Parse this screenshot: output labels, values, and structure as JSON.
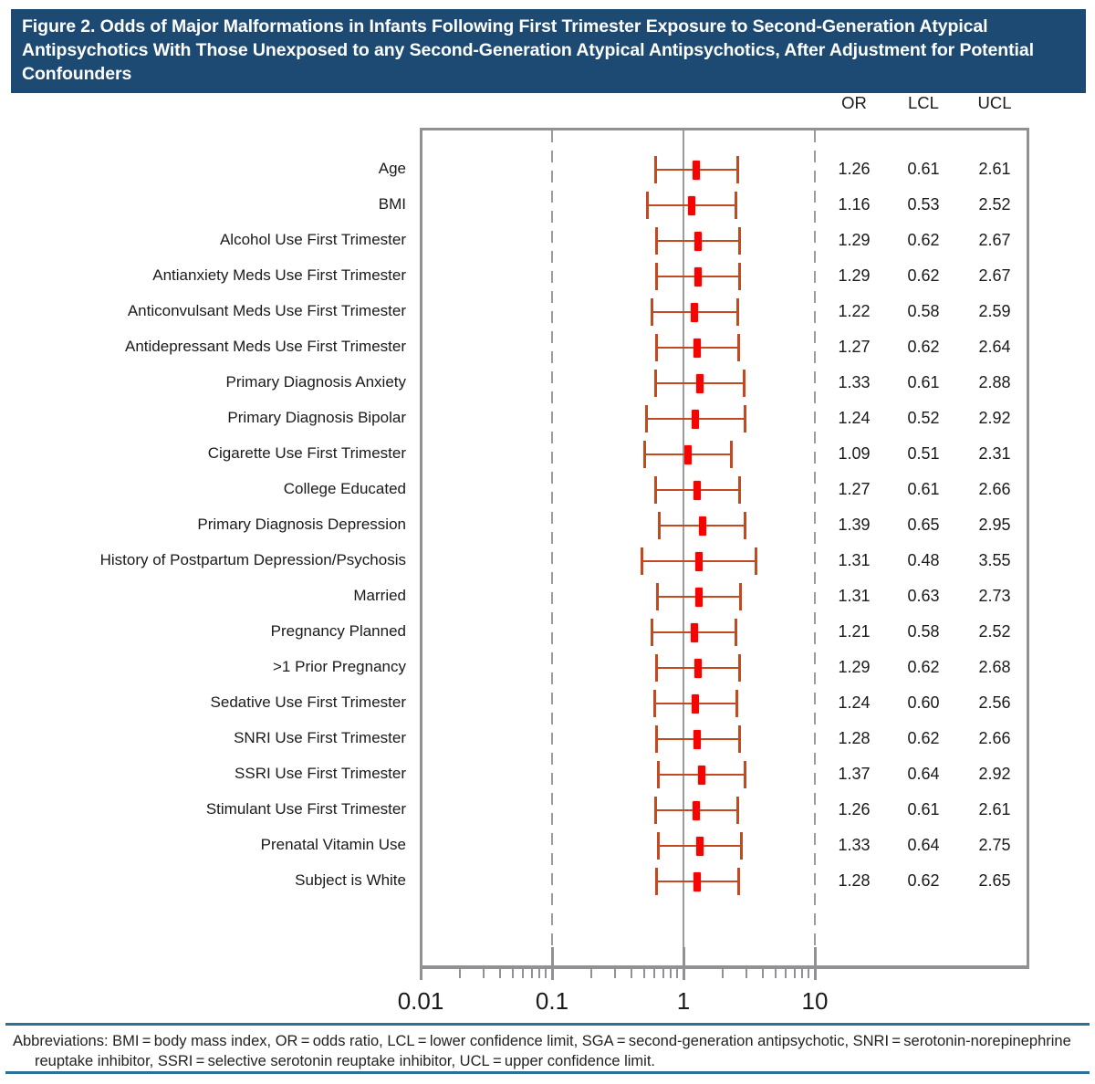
{
  "title": "Figure 2. Odds of Major Malformations in Infants Following First Trimester Exposure to Second-Generation Atypical Antipsychotics With Those Unexposed to any Second-Generation Atypical Antipsychotics, After Adjustment for Potential Confounders",
  "columns": {
    "or": "OR",
    "lcl": "LCL",
    "ucl": "UCL"
  },
  "chart_data": {
    "type": "forest",
    "x_scale": "log10",
    "x_range": [
      0.01,
      100
    ],
    "x_ticks": [
      0.01,
      0.1,
      1,
      10
    ],
    "x_tick_labels": [
      "0.01",
      "0.1",
      "1",
      "10"
    ],
    "minor_tick_multipliers": [
      2,
      3,
      4,
      5,
      6,
      7,
      8,
      9
    ],
    "minor_tick_decades": [
      -2,
      -1,
      0
    ],
    "reference_line": 1,
    "dashed_gridlines": [
      0.1,
      10
    ],
    "rows": [
      {
        "label": "Age",
        "or": 1.26,
        "lcl": 0.61,
        "ucl": 2.61
      },
      {
        "label": "BMI",
        "or": 1.16,
        "lcl": 0.53,
        "ucl": 2.52
      },
      {
        "label": "Alcohol Use First Trimester",
        "or": 1.29,
        "lcl": 0.62,
        "ucl": 2.67
      },
      {
        "label": "Antianxiety Meds Use First Trimester",
        "or": 1.29,
        "lcl": 0.62,
        "ucl": 2.67
      },
      {
        "label": "Anticonvulsant Meds Use First Trimester",
        "or": 1.22,
        "lcl": 0.58,
        "ucl": 2.59
      },
      {
        "label": "Antidepressant Meds Use First Trimester",
        "or": 1.27,
        "lcl": 0.62,
        "ucl": 2.64
      },
      {
        "label": "Primary Diagnosis Anxiety",
        "or": 1.33,
        "lcl": 0.61,
        "ucl": 2.88
      },
      {
        "label": "Primary Diagnosis Bipolar",
        "or": 1.24,
        "lcl": 0.52,
        "ucl": 2.92
      },
      {
        "label": "Cigarette Use First Trimester",
        "or": 1.09,
        "lcl": 0.51,
        "ucl": 2.31
      },
      {
        "label": "College Educated",
        "or": 1.27,
        "lcl": 0.61,
        "ucl": 2.66
      },
      {
        "label": "Primary Diagnosis Depression",
        "or": 1.39,
        "lcl": 0.65,
        "ucl": 2.95
      },
      {
        "label": "History of Postpartum Depression/Psychosis",
        "or": 1.31,
        "lcl": 0.48,
        "ucl": 3.55
      },
      {
        "label": "Married",
        "or": 1.31,
        "lcl": 0.63,
        "ucl": 2.73
      },
      {
        "label": "Pregnancy Planned",
        "or": 1.21,
        "lcl": 0.58,
        "ucl": 2.52
      },
      {
        "label": ">1 Prior Pregnancy",
        "or": 1.29,
        "lcl": 0.62,
        "ucl": 2.68
      },
      {
        "label": "Sedative Use First Trimester",
        "or": 1.24,
        "lcl": 0.6,
        "ucl": 2.56
      },
      {
        "label": "SNRI Use First Trimester",
        "or": 1.28,
        "lcl": 0.62,
        "ucl": 2.66
      },
      {
        "label": "SSRI Use First Trimester",
        "or": 1.37,
        "lcl": 0.64,
        "ucl": 2.92
      },
      {
        "label": "Stimulant Use First Trimester",
        "or": 1.26,
        "lcl": 0.61,
        "ucl": 2.61
      },
      {
        "label": "Prenatal Vitamin Use",
        "or": 1.33,
        "lcl": 0.64,
        "ucl": 2.75
      },
      {
        "label": "Subject is White",
        "or": 1.28,
        "lcl": 0.62,
        "ucl": 2.65
      }
    ]
  },
  "footer": {
    "lines": [
      "Abbreviations: BMI = body mass index, OR = odds ratio, LCL = lower confidence limit, SGA = second-generation antipsychotic, SNRI = serotonin-norepinephrine",
      "reuptake inhibitor, SSRI = selective serotonin reuptake inhibitor, UCL = upper confidence limit."
    ]
  },
  "colors": {
    "title_background": "#1d4a73",
    "ci_bar": "#c24a21",
    "or_marker": "#f50400",
    "gridline_gray": "#999da1",
    "plot_border": "#8f9194",
    "footer_rule": "#2e7096"
  }
}
